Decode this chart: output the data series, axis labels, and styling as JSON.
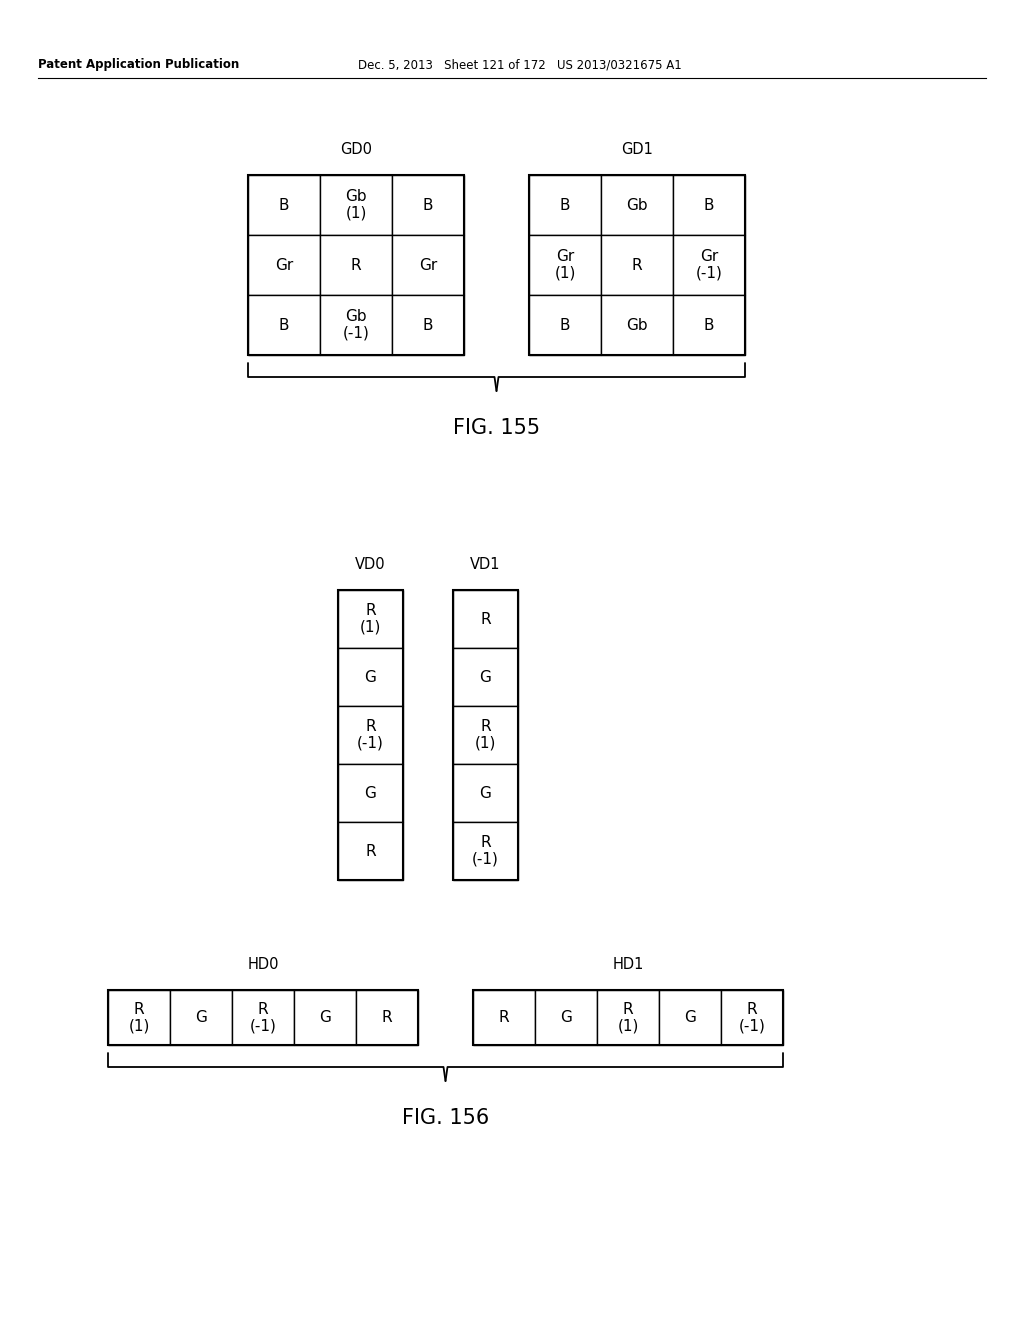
{
  "bg_color": "#ffffff",
  "fig155": {
    "title": "FIG. 155",
    "gd0_label": "GD0",
    "gd1_label": "GD1",
    "gd0_cells": [
      [
        "B",
        "Gb\n(1)",
        "B"
      ],
      [
        "Gr",
        "R",
        "Gr"
      ],
      [
        "B",
        "Gb\n(-1)",
        "B"
      ]
    ],
    "gd1_cells": [
      [
        "B",
        "Gb",
        "B"
      ],
      [
        "Gr\n(1)",
        "R",
        "Gr\n(-1)"
      ],
      [
        "B",
        "Gb",
        "B"
      ]
    ]
  },
  "fig156": {
    "title": "FIG. 156",
    "vd0_label": "VD0",
    "vd1_label": "VD1",
    "hd0_label": "HD0",
    "hd1_label": "HD1",
    "vd0_cells": [
      "R\n(1)",
      "G",
      "R\n(-1)",
      "G",
      "R"
    ],
    "vd1_cells": [
      "R",
      "G",
      "R\n(1)",
      "G",
      "R\n(-1)"
    ],
    "hd0_cells": [
      "R\n(1)",
      "G",
      "R\n(-1)",
      "G",
      "R"
    ],
    "hd1_cells": [
      "R",
      "G",
      "R\n(1)",
      "G",
      "R\n(-1)"
    ]
  },
  "header_left": "Patent Application Publication",
  "header_right": "Dec. 5, 2013   Sheet 121 of 172   US 2013/0321675 A1"
}
